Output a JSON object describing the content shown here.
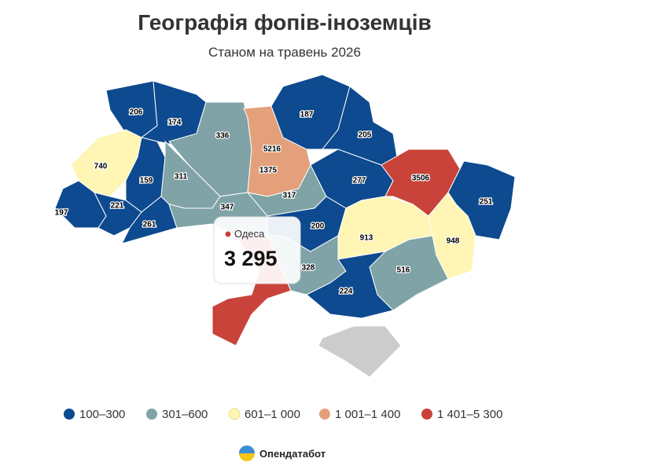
{
  "title": "Географія фопів-іноземців",
  "subtitle": "Станом на травень 2026",
  "regions": [
    {
      "value": 206
    },
    {
      "value": 174
    },
    {
      "value": 336
    },
    {
      "value": 5216
    },
    {
      "value": 1375
    },
    {
      "value": 187
    },
    {
      "value": 205
    },
    {
      "value": 740
    },
    {
      "value": 159
    },
    {
      "value": 311
    },
    {
      "value": 317
    },
    {
      "value": 277
    },
    {
      "value": 3506
    },
    {
      "value": 251
    },
    {
      "value": 197
    },
    {
      "value": 221
    },
    {
      "value": 261
    },
    {
      "value": 347
    },
    {
      "value": 200
    },
    {
      "value": 913
    },
    {
      "value": 948
    },
    {
      "value": 328
    },
    {
      "value": 516
    },
    {
      "value": 224
    },
    {
      "name": "Одеса",
      "value": 3295,
      "value_label": "3 295"
    }
  ],
  "legend": [
    {
      "label": "100–300",
      "min": 100,
      "max": 300,
      "color": "#0d4a8f"
    },
    {
      "label": "301–600",
      "min": 301,
      "max": 600,
      "color": "#7fa3a6"
    },
    {
      "label": "601–1 000",
      "min": 601,
      "max": 1000,
      "color": "#fff5b5"
    },
    {
      "label": "1 001–1 400",
      "min": 1001,
      "max": 1400,
      "color": "#e3a07a"
    },
    {
      "label": "1 401–5 300",
      "min": 1401,
      "max": 5300,
      "color": "#c9433a"
    }
  ],
  "brand": "Опендатабот"
}
